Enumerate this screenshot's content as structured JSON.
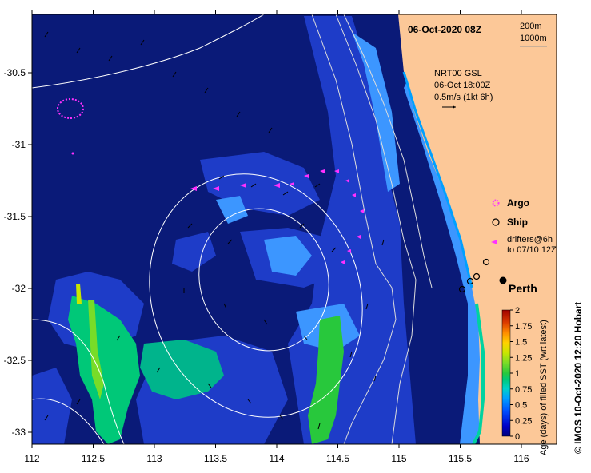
{
  "header": {
    "date_label": "06-Oct-2020 08Z",
    "contour_200": "200m",
    "contour_1000": "1000m"
  },
  "current_info": {
    "line1": "NRT00 GSL",
    "line2": "06-Oct 18:00Z",
    "line3": "0.5m/s (1kt 6h)"
  },
  "legend": {
    "argo": "Argo",
    "ship": "Ship",
    "drifters_line1": "drifters@6h",
    "drifters_line2": "to 07/10 12Z"
  },
  "city": "Perth",
  "colorbar": {
    "title": "Age (days) of filled SST (wrt latest)",
    "ticks": [
      "2",
      "1.75",
      "1.5",
      "1.25",
      "1",
      "0.75",
      "0.5",
      "0.25",
      "0"
    ],
    "colors": [
      "#00007a",
      "#0000c8",
      "#0050ff",
      "#00a0ff",
      "#00d2c8",
      "#00c878",
      "#28c83c",
      "#78dc28",
      "#c8e600",
      "#ffd200",
      "#ff8c00",
      "#dc3c00",
      "#a00000"
    ]
  },
  "credit": "© IMOS 10-Oct-2020 12:20 Hobart",
  "x_axis": {
    "ticks": [
      "112",
      "112.5",
      "113",
      "113.5",
      "114",
      "114.5",
      "115",
      "115.5",
      "116"
    ]
  },
  "y_axis": {
    "ticks": [
      "-30.5",
      "-31",
      "-31.5",
      "-32",
      "-32.5",
      "-33"
    ]
  },
  "colors": {
    "ocean_deep": "#0a1a78",
    "ocean_mid": "#1e3cc8",
    "ocean_light": "#3c96ff",
    "land": "#fcc898",
    "drifter": "#ff30ff"
  }
}
